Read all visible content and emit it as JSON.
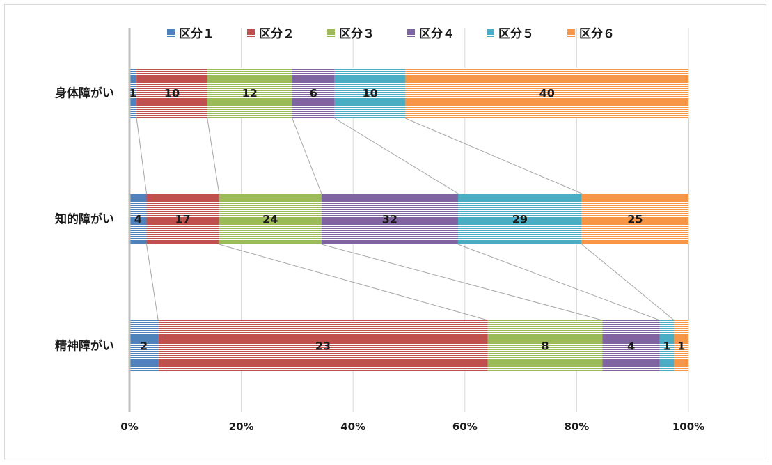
{
  "chart_data": {
    "type": "bar",
    "orientation": "horizontal",
    "stacked": "percent",
    "categories": [
      "身体障がい",
      "知的障がい",
      "精神障がい"
    ],
    "series": [
      {
        "name": "区分１",
        "values": [
          1,
          4,
          2
        ],
        "color": "#4f81bd"
      },
      {
        "name": "区分２",
        "values": [
          10,
          17,
          23
        ],
        "color": "#c0504d"
      },
      {
        "name": "区分３",
        "values": [
          12,
          24,
          8
        ],
        "color": "#9bbb59"
      },
      {
        "name": "区分４",
        "values": [
          6,
          32,
          4
        ],
        "color": "#8064a2"
      },
      {
        "name": "区分５",
        "values": [
          10,
          29,
          1
        ],
        "color": "#4bacc6"
      },
      {
        "name": "区分６",
        "values": [
          40,
          25,
          1
        ],
        "color": "#f79646"
      }
    ],
    "x_ticks": [
      "0%",
      "20%",
      "40%",
      "60%",
      "80%",
      "100%"
    ],
    "xlim": [
      0,
      100
    ],
    "legend_position": "top",
    "grid": true,
    "series_lines": true,
    "data_labels": true
  }
}
